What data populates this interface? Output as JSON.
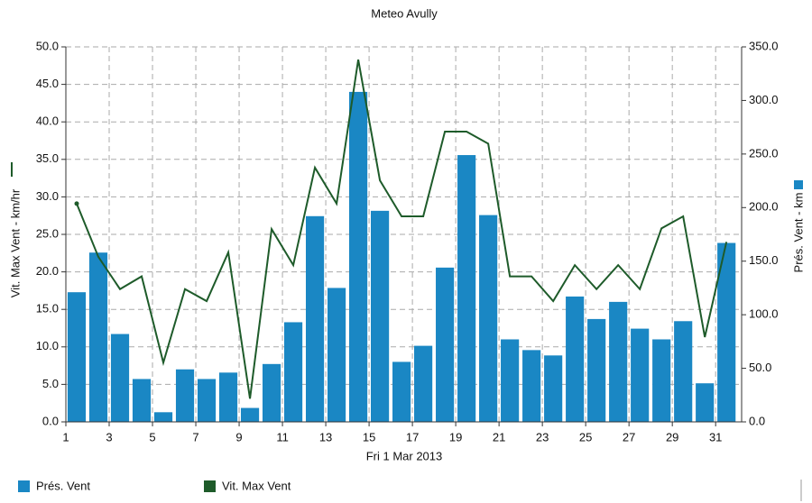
{
  "chart_data": {
    "type": "bar-line",
    "title": "Meteo  Avully",
    "xlabel": "Fri 1 Mar 2013",
    "ylabel": "Vit. Max Vent - km/hr",
    "y2label": "Prés. Vent - km",
    "x": [
      1.5,
      2.5,
      3.5,
      4.5,
      5.5,
      6.5,
      7.5,
      8.5,
      9.5,
      10.5,
      11.5,
      12.5,
      13.5,
      14.5,
      15.5,
      16.5,
      17.5,
      18.5,
      19.5,
      20.5,
      21.5,
      22.5,
      23.5,
      24.5,
      25.5,
      26.5,
      27.5,
      28.5,
      29.5,
      30.5,
      31.5
    ],
    "xlim": [
      1,
      32.2
    ],
    "xticks": [
      1,
      3,
      5,
      7,
      9,
      11,
      13,
      15,
      17,
      19,
      21,
      23,
      25,
      27,
      29,
      31
    ],
    "ylim": [
      0,
      50
    ],
    "yticks": [
      {
        "value": 0,
        "label": "0.0"
      },
      {
        "value": 5,
        "label": "5.0"
      },
      {
        "value": 10,
        "label": "10.0"
      },
      {
        "value": 15,
        "label": "15.0"
      },
      {
        "value": 20,
        "label": "20.0"
      },
      {
        "value": 25,
        "label": "25.0"
      },
      {
        "value": 30,
        "label": "30.0"
      },
      {
        "value": 35,
        "label": "35.0"
      },
      {
        "value": 40,
        "label": "40.0"
      },
      {
        "value": 45,
        "label": "45.0"
      },
      {
        "value": 50,
        "label": "50.0"
      }
    ],
    "y2lim": [
      0,
      350
    ],
    "y2ticks": [
      {
        "value": 0,
        "label": "0.0"
      },
      {
        "value": 50,
        "label": "50.0"
      },
      {
        "value": 100,
        "label": "100.0"
      },
      {
        "value": 150,
        "label": "150.0"
      },
      {
        "value": 200,
        "label": "200.0"
      },
      {
        "value": 250,
        "label": "250.0"
      },
      {
        "value": 300,
        "label": "300.0"
      },
      {
        "value": 350,
        "label": "350.0"
      }
    ],
    "grid": true,
    "series": [
      {
        "name": "Prés. Vent",
        "color": "#1a87c4",
        "kind": "bar",
        "axis": "y2",
        "values": [
          121,
          158,
          82,
          40,
          9,
          49,
          40,
          46,
          13,
          54,
          93,
          192,
          125,
          308,
          197,
          56,
          71,
          144,
          249,
          193,
          77,
          67,
          62,
          117,
          96,
          112,
          87,
          77,
          94,
          36,
          167
        ]
      },
      {
        "name": "Vit. Max Vent",
        "color": "#1e5b2a",
        "kind": "line",
        "axis": "y",
        "values": [
          29.1,
          22,
          17.7,
          19.4,
          7.9,
          17.7,
          16.1,
          22.6,
          3.1,
          25.7,
          20.9,
          33.9,
          29.1,
          48.3,
          32.2,
          27.4,
          27.4,
          38.7,
          38.7,
          37.1,
          19.4,
          19.4,
          16.1,
          20.9,
          17.7,
          20.9,
          17.7,
          25.8,
          27.4,
          11.3,
          24.0
        ]
      }
    ]
  }
}
